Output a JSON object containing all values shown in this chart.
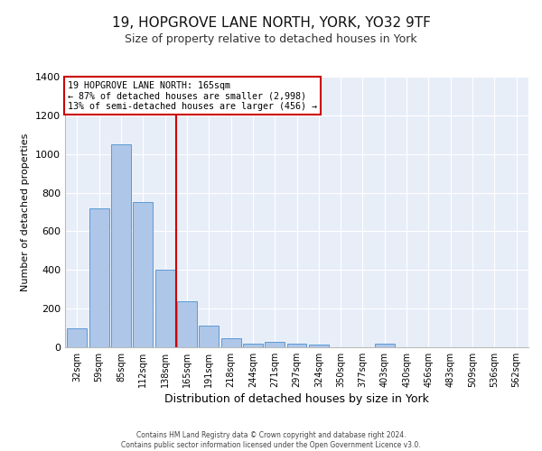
{
  "title1": "19, HOPGROVE LANE NORTH, YORK, YO32 9TF",
  "title2": "Size of property relative to detached houses in York",
  "xlabel": "Distribution of detached houses by size in York",
  "ylabel": "Number of detached properties",
  "categories": [
    "32sqm",
    "59sqm",
    "85sqm",
    "112sqm",
    "138sqm",
    "165sqm",
    "191sqm",
    "218sqm",
    "244sqm",
    "271sqm",
    "297sqm",
    "324sqm",
    "350sqm",
    "377sqm",
    "403sqm",
    "430sqm",
    "456sqm",
    "483sqm",
    "509sqm",
    "536sqm",
    "562sqm"
  ],
  "values": [
    100,
    720,
    1050,
    750,
    400,
    240,
    110,
    45,
    20,
    30,
    20,
    15,
    0,
    0,
    20,
    0,
    0,
    0,
    0,
    0,
    0
  ],
  "bar_color": "#aec6e8",
  "bar_edge_color": "#5b9bd5",
  "vline_color": "#cc0000",
  "annotation_line1": "19 HOPGROVE LANE NORTH: 165sqm",
  "annotation_line2": "← 87% of detached houses are smaller (2,998)",
  "annotation_line3": "13% of semi-detached houses are larger (456) →",
  "ylim": [
    0,
    1400
  ],
  "yticks": [
    0,
    200,
    400,
    600,
    800,
    1000,
    1200,
    1400
  ],
  "background_color": "#e8eef8",
  "grid_color": "#ffffff",
  "footer1": "Contains HM Land Registry data © Crown copyright and database right 2024.",
  "footer2": "Contains public sector information licensed under the Open Government Licence v3.0."
}
